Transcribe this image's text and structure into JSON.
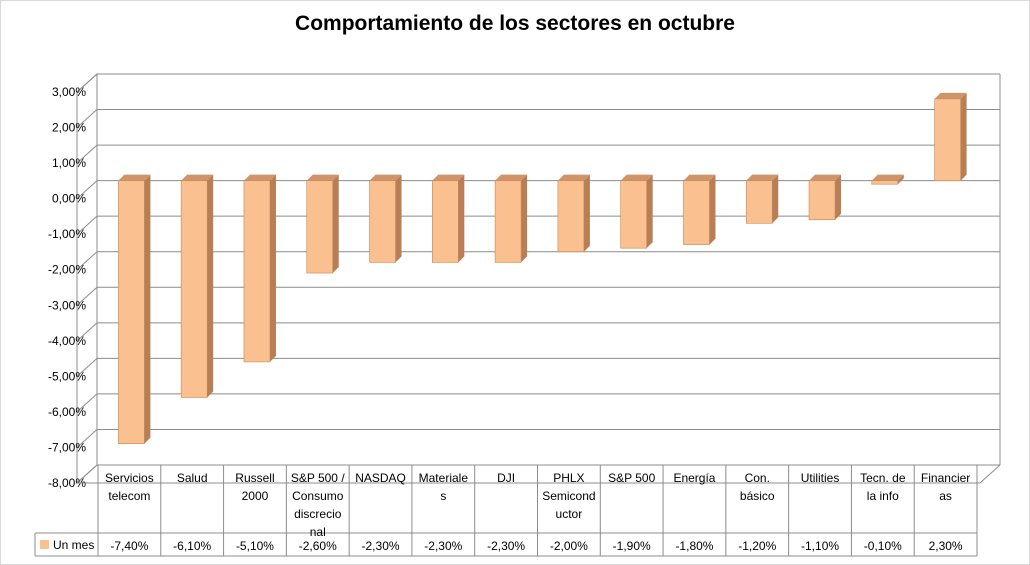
{
  "chart_data": {
    "type": "bar",
    "title": "Comportamiento de los sectores en octubre",
    "categories": [
      [
        "Servicios",
        "telecom"
      ],
      [
        "Salud"
      ],
      [
        "Russell",
        "2000"
      ],
      [
        "S&P 500 /",
        "Consumo",
        "discrecio",
        "nal"
      ],
      [
        "NASDAQ"
      ],
      [
        "Materiale",
        "s"
      ],
      [
        "DJI"
      ],
      [
        "PHLX",
        "Semicond",
        "uctor"
      ],
      [
        "S&P 500"
      ],
      [
        "Energía"
      ],
      [
        "Con.",
        "básico"
      ],
      [
        "Utilities"
      ],
      [
        "Tecn. de",
        "la info"
      ],
      [
        "Financier",
        "as"
      ]
    ],
    "series": [
      {
        "name": "Un mes",
        "values": [
          -7.4,
          -6.1,
          -5.1,
          -2.6,
          -2.3,
          -2.3,
          -2.3,
          -2.0,
          -1.9,
          -1.8,
          -1.2,
          -1.1,
          -0.1,
          2.3
        ],
        "labels": [
          "-7,40%",
          "-6,10%",
          "-5,10%",
          "-2,60%",
          "-2,30%",
          "-2,30%",
          "-2,30%",
          "-2,00%",
          "-1,90%",
          "-1,80%",
          "-1,20%",
          "-1,10%",
          "-0,10%",
          "2,30%"
        ]
      }
    ],
    "ylim": [
      -8,
      3
    ],
    "yticks": [
      "3,00%",
      "2,00%",
      "1,00%",
      "0,00%",
      "-1,00%",
      "-2,00%",
      "-3,00%",
      "-4,00%",
      "-5,00%",
      "-6,00%",
      "-7,00%",
      "-8,00%"
    ],
    "ytick_values": [
      3,
      2,
      1,
      0,
      -1,
      -2,
      -3,
      -4,
      -5,
      -6,
      -7,
      -8
    ],
    "grid": true,
    "legend_position": "data-table",
    "colors": {
      "bar_front": "#fac090",
      "bar_side": "#b87e55",
      "bar_top": "#cf9469",
      "bar_edge": "#c7874f",
      "grid": "#8c8c8c",
      "wall": "#ffffff"
    },
    "style": "3d-column-with-data-table"
  }
}
